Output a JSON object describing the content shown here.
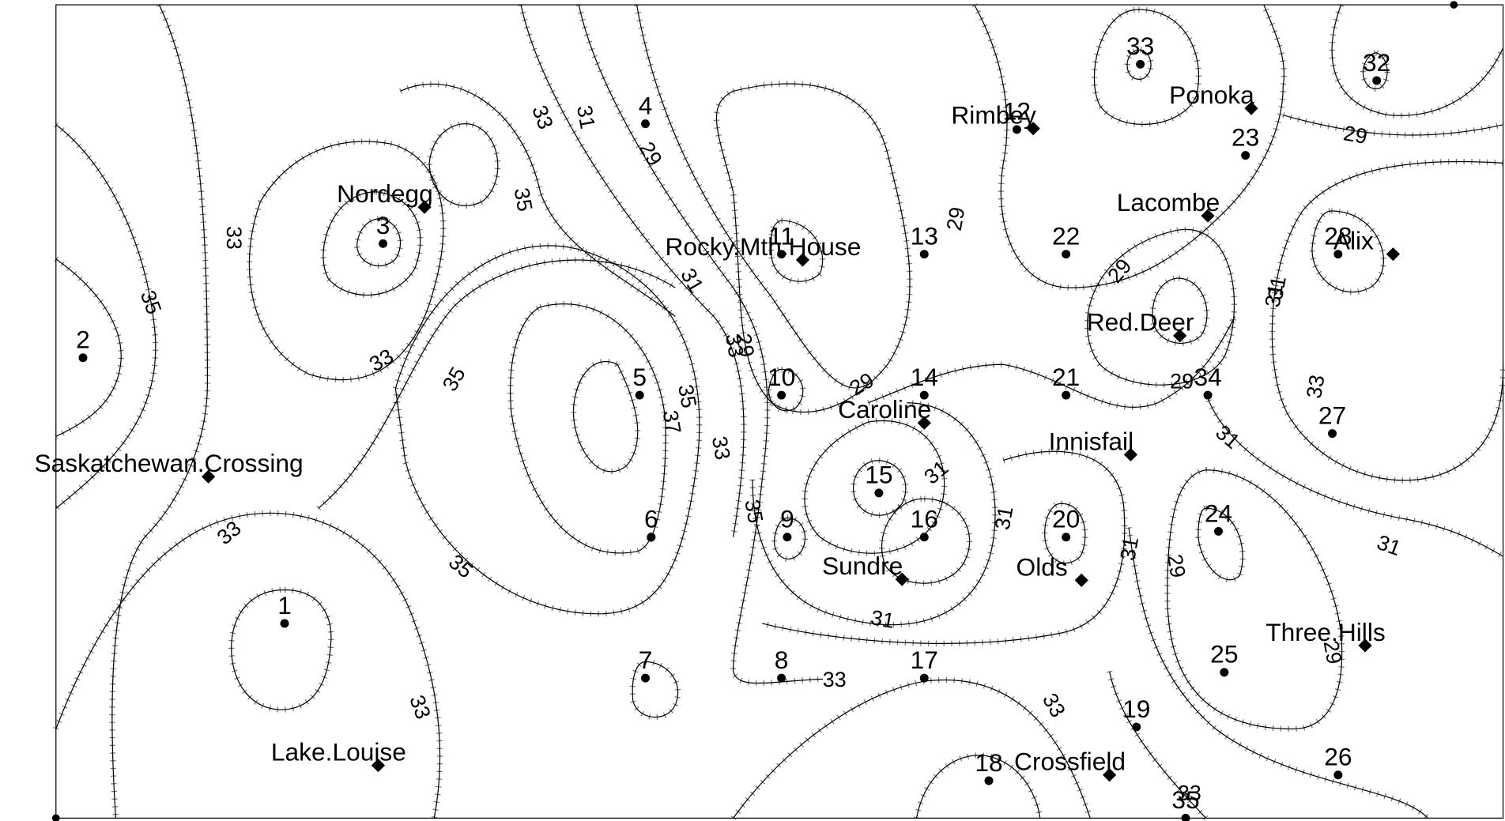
{
  "stations": [
    {
      "label": "1"
    },
    {
      "label": "2"
    },
    {
      "label": "3"
    },
    {
      "label": "4"
    },
    {
      "label": "5"
    },
    {
      "label": "6"
    },
    {
      "label": "7"
    },
    {
      "label": "8"
    },
    {
      "label": "9"
    },
    {
      "label": "10"
    },
    {
      "label": "11"
    },
    {
      "label": "12"
    },
    {
      "label": "13"
    },
    {
      "label": "14"
    },
    {
      "label": "15"
    },
    {
      "label": "16"
    },
    {
      "label": "17"
    },
    {
      "label": "18"
    },
    {
      "label": "19"
    },
    {
      "label": "20"
    },
    {
      "label": "21"
    },
    {
      "label": "22"
    },
    {
      "label": "23"
    },
    {
      "label": "24"
    },
    {
      "label": "25"
    },
    {
      "label": "26"
    },
    {
      "label": "27"
    },
    {
      "label": "28"
    },
    {
      "label": "32"
    },
    {
      "label": "33"
    },
    {
      "label": "34"
    },
    {
      "label": "35"
    }
  ],
  "towns": [
    {
      "label": "Nordegg"
    },
    {
      "label": "Rocky.Mth.House"
    },
    {
      "label": "Rimbey"
    },
    {
      "label": "Ponoka"
    },
    {
      "label": "Lacombe"
    },
    {
      "label": "Alix"
    },
    {
      "label": "Red.Deer"
    },
    {
      "label": "Caroline"
    },
    {
      "label": "Innisfail"
    },
    {
      "label": "Saskatchewan.Crossing"
    },
    {
      "label": "Sundre"
    },
    {
      "label": "Olds"
    },
    {
      "label": "Three.Hills"
    },
    {
      "label": "Crossfield"
    },
    {
      "label": "Lake.Louise"
    }
  ],
  "contour_labels": [
    33,
    35,
    33,
    33,
    35,
    33,
    31,
    29,
    35,
    33,
    31,
    29,
    35,
    35,
    37,
    33,
    35,
    33,
    31,
    29,
    29,
    31,
    31,
    33,
    31,
    31,
    29,
    29,
    29,
    29,
    31,
    33,
    31,
    31,
    29,
    33,
    33
  ]
}
